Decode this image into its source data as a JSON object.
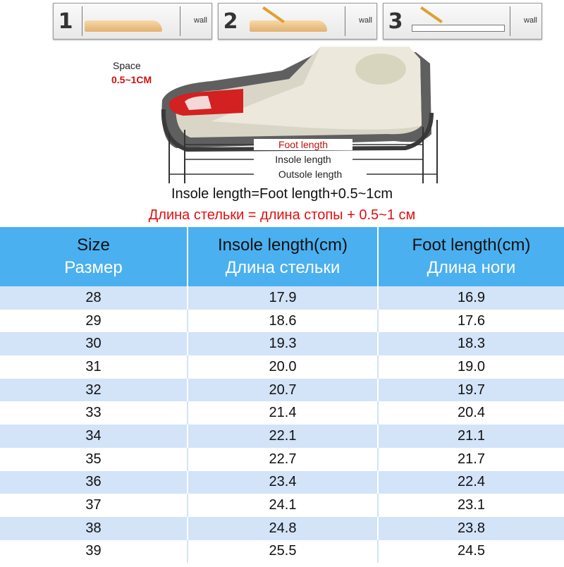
{
  "steps": [
    {
      "num": "1",
      "wall": "wall"
    },
    {
      "num": "2",
      "wall": "wall"
    },
    {
      "num": "3",
      "wall": "wall"
    }
  ],
  "diagram": {
    "space_label": "Space",
    "space_value": "0.5~1CM",
    "foot_length": "Foot length",
    "insole_length": "Insole length",
    "outsole_length": "Outsole length"
  },
  "formula_en": "Insole length=Foot length+0.5~1cm",
  "formula_ru": "Длина стельки = длина стопы + 0.5~1 см",
  "table": {
    "headers": [
      {
        "en": "Size",
        "ru": "Размер"
      },
      {
        "en": "Insole length(cm)",
        "ru": "Длина стельки"
      },
      {
        "en": "Foot length(cm)",
        "ru": "Длина ноги"
      }
    ],
    "rows": [
      [
        "28",
        "17.9",
        "16.9"
      ],
      [
        "29",
        "18.6",
        "17.6"
      ],
      [
        "30",
        "19.3",
        "18.3"
      ],
      [
        "31",
        "20.0",
        "19.0"
      ],
      [
        "32",
        "20.7",
        "19.7"
      ],
      [
        "33",
        "21.4",
        "20.4"
      ],
      [
        "34",
        "22.1",
        "21.1"
      ],
      [
        "35",
        "22.7",
        "21.7"
      ],
      [
        "36",
        "23.4",
        "22.4"
      ],
      [
        "37",
        "24.1",
        "23.1"
      ],
      [
        "38",
        "24.8",
        "23.8"
      ],
      [
        "39",
        "25.5",
        "24.5"
      ]
    ]
  }
}
